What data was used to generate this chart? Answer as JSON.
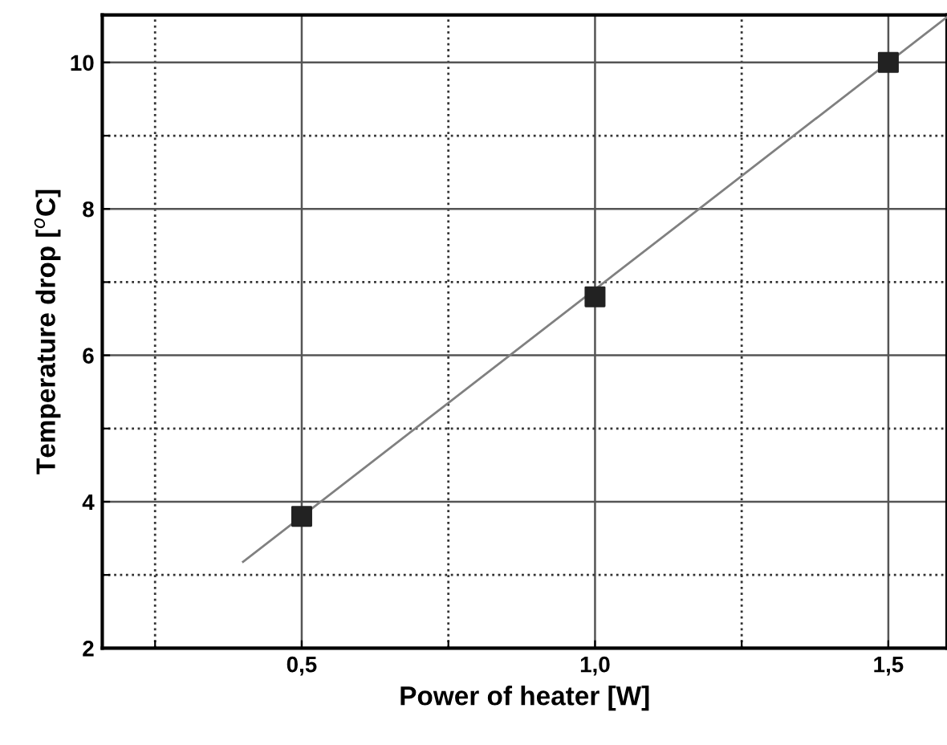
{
  "chart_data": {
    "type": "scatter",
    "xlabel": "Power of heater [W]",
    "ylabel": "Temperature drop [$^{o}$C]",
    "series": [
      {
        "x": [
          0.5,
          1.0,
          1.5
        ],
        "values": [
          3.8,
          6.8,
          10.0
        ],
        "color": "#222222",
        "marker": "square"
      },
      {
        "type": "line",
        "x": [
          0.4,
          1.6
        ],
        "values": [
          3.18,
          10.62
        ],
        "color": "#808080",
        "marker": "none",
        "line_style": "solid"
      }
    ],
    "xlim": [
      0.16,
      1.6
    ],
    "ylim": [
      2,
      10.65
    ],
    "xticks": [
      {
        "value": 0.25,
        "label": null
      },
      {
        "value": 0.5,
        "label": "0,5"
      },
      {
        "value": 0.75,
        "label": null
      },
      {
        "value": 1.0,
        "label": "1,0"
      },
      {
        "value": 1.25,
        "label": null
      },
      {
        "value": 1.5,
        "label": "1,5"
      }
    ],
    "yticks": [
      2,
      {
        "value": 3,
        "label": null
      },
      4,
      {
        "value": 5,
        "label": null
      },
      6,
      {
        "value": 7,
        "label": null
      },
      8,
      {
        "value": 9,
        "label": null
      },
      10
    ],
    "grid": true
  }
}
